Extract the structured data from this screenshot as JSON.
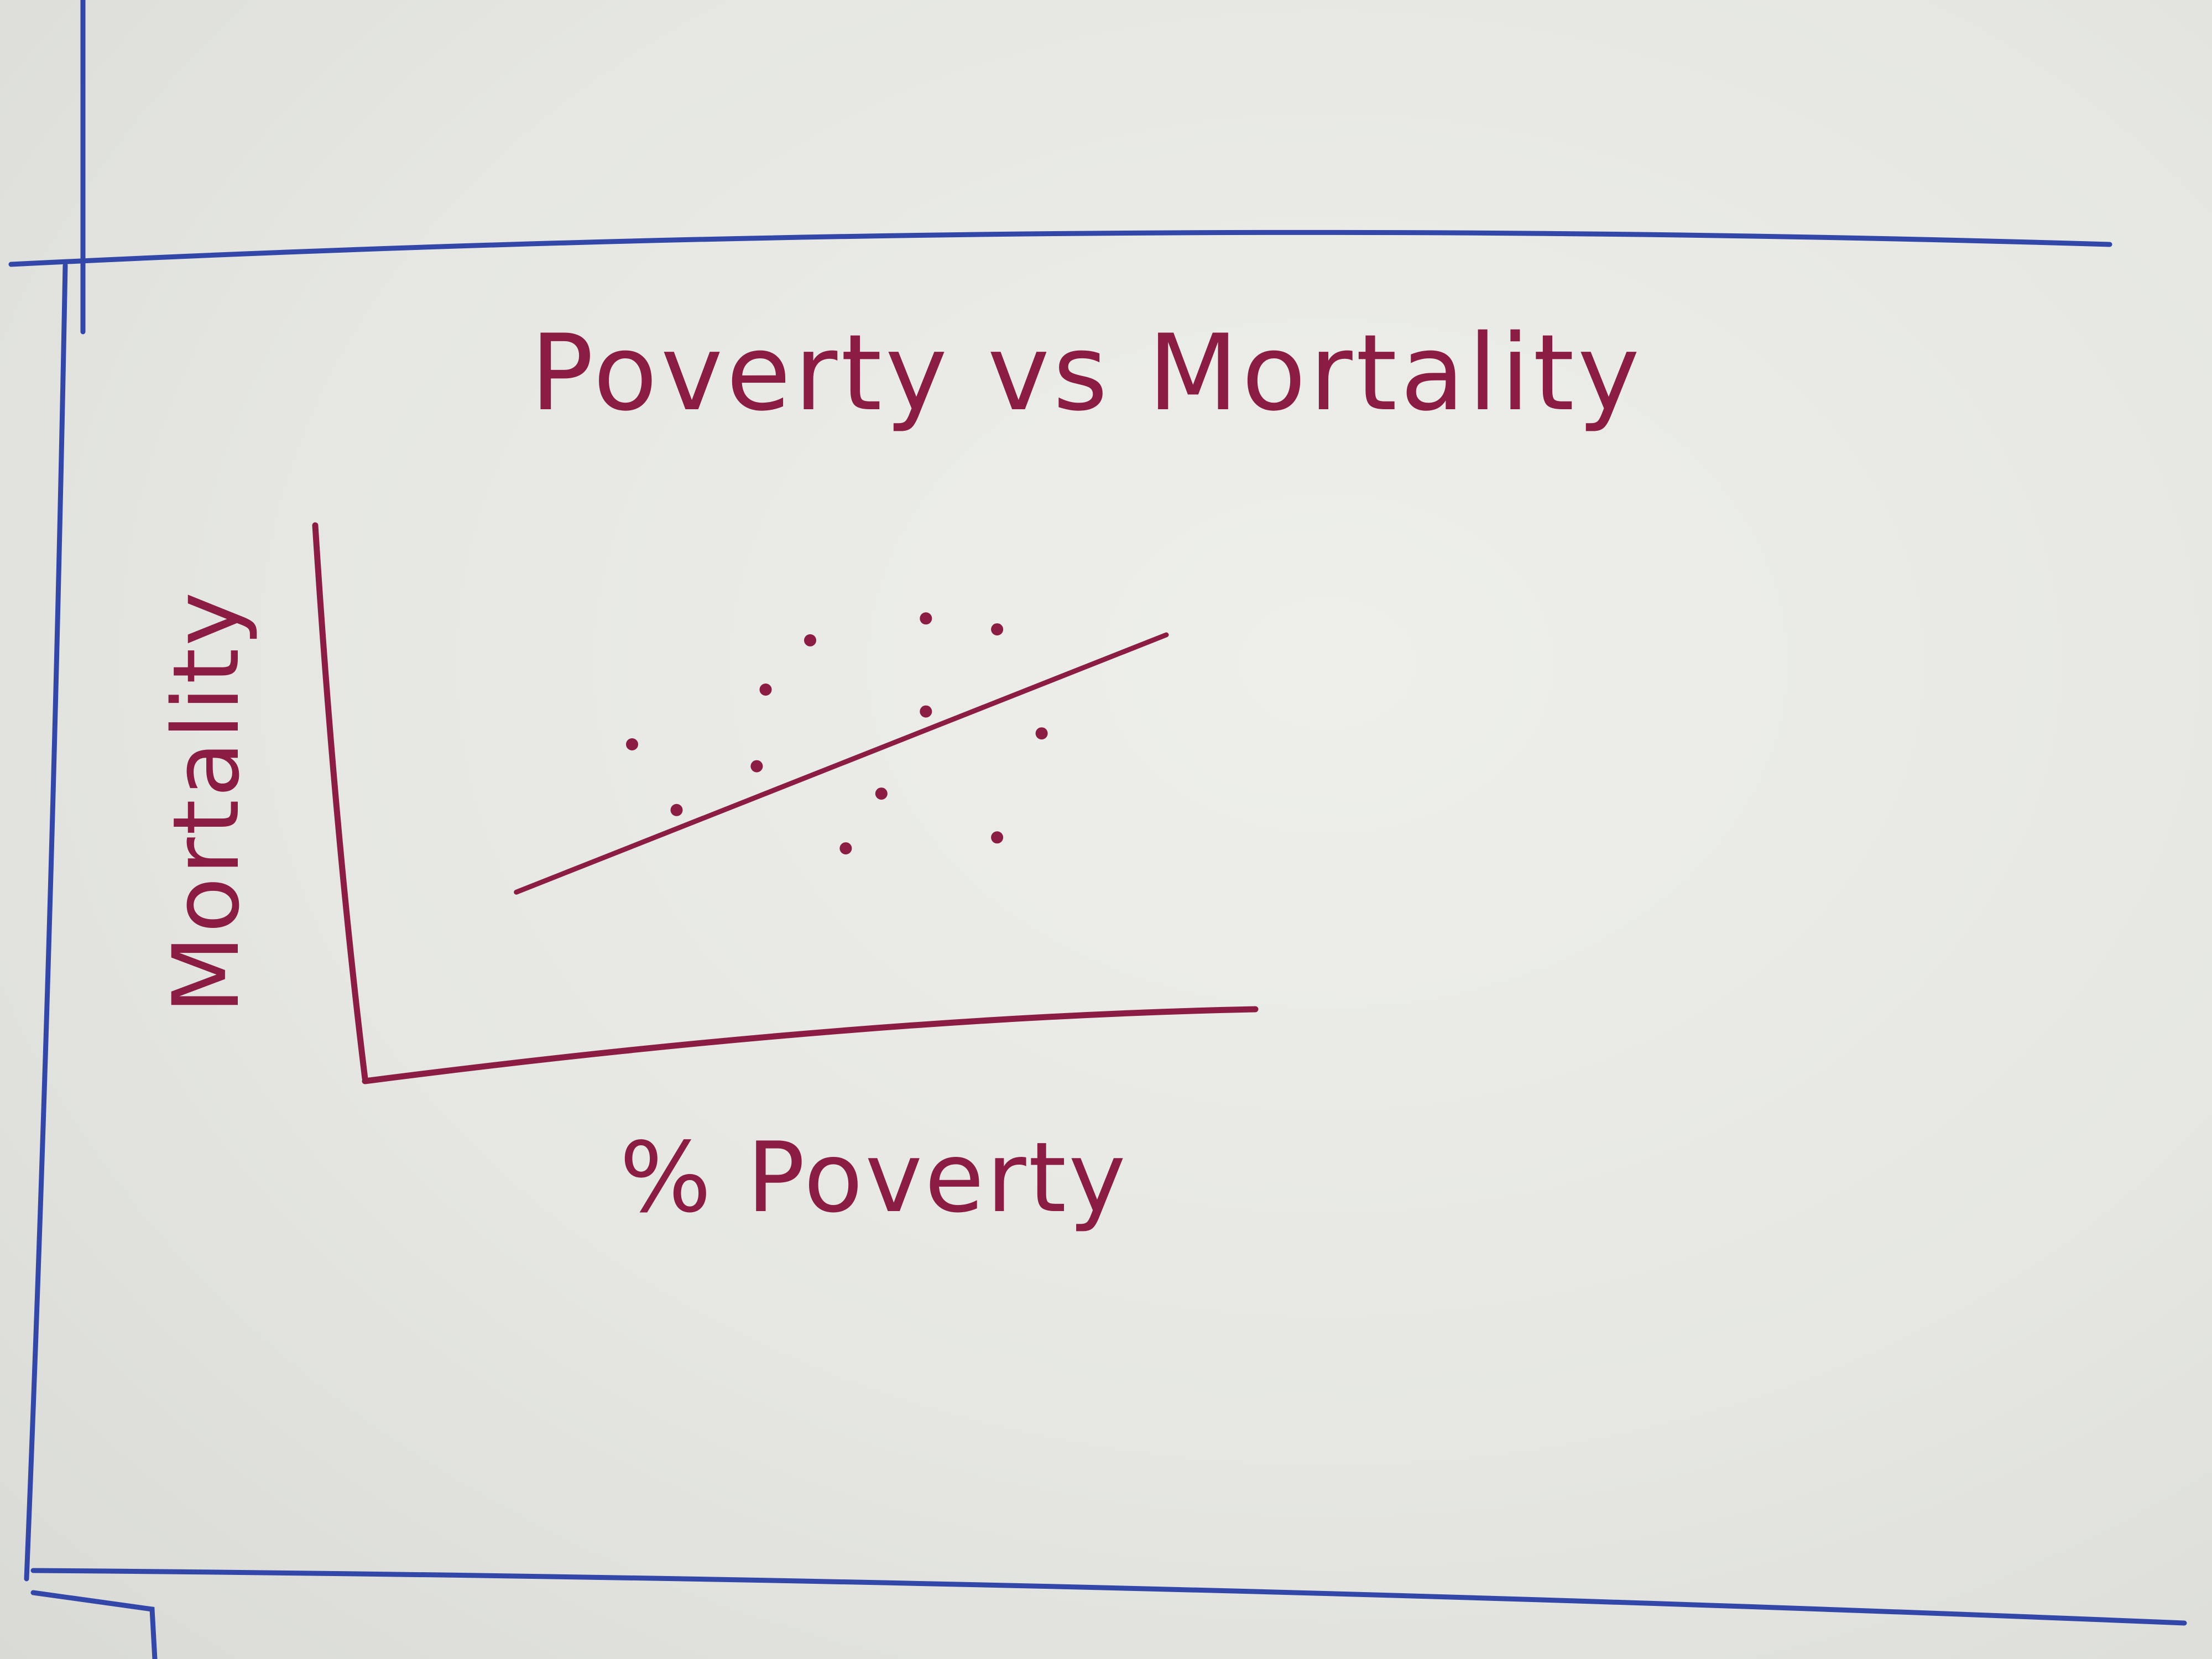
{
  "colors": {
    "ink": "#8b1d45",
    "frame": "#3347a8",
    "paper": "#e7e8e4"
  },
  "chart_data": {
    "type": "scatter",
    "title": "Poverty vs Mortality",
    "xlabel": "% Poverty",
    "ylabel": "Mortality",
    "axes_ticks": false,
    "grid": false,
    "legend": "none",
    "xlim": [
      0,
      10
    ],
    "ylim": [
      0,
      10
    ],
    "points": [
      {
        "x": 3.0,
        "y": 6.0
      },
      {
        "x": 3.5,
        "y": 4.8
      },
      {
        "x": 4.4,
        "y": 5.6
      },
      {
        "x": 4.5,
        "y": 7.0
      },
      {
        "x": 5.0,
        "y": 7.9
      },
      {
        "x": 5.4,
        "y": 4.1
      },
      {
        "x": 5.8,
        "y": 5.1
      },
      {
        "x": 6.3,
        "y": 8.3
      },
      {
        "x": 6.3,
        "y": 6.6
      },
      {
        "x": 7.1,
        "y": 4.3
      },
      {
        "x": 7.1,
        "y": 8.1
      },
      {
        "x": 7.6,
        "y": 6.2
      }
    ],
    "trendline": {
      "x": [
        1.7,
        9.0
      ],
      "y": [
        3.3,
        8.0
      ]
    }
  }
}
